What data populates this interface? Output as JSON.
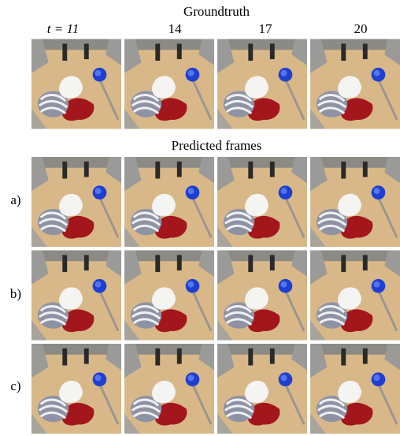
{
  "header": {
    "title": "Groundtruth",
    "time_labels": [
      "t = 11",
      "14",
      "17",
      "20"
    ]
  },
  "predicted": {
    "title": "Predicted frames",
    "rows": [
      "a)",
      "b)",
      "c)"
    ]
  }
}
